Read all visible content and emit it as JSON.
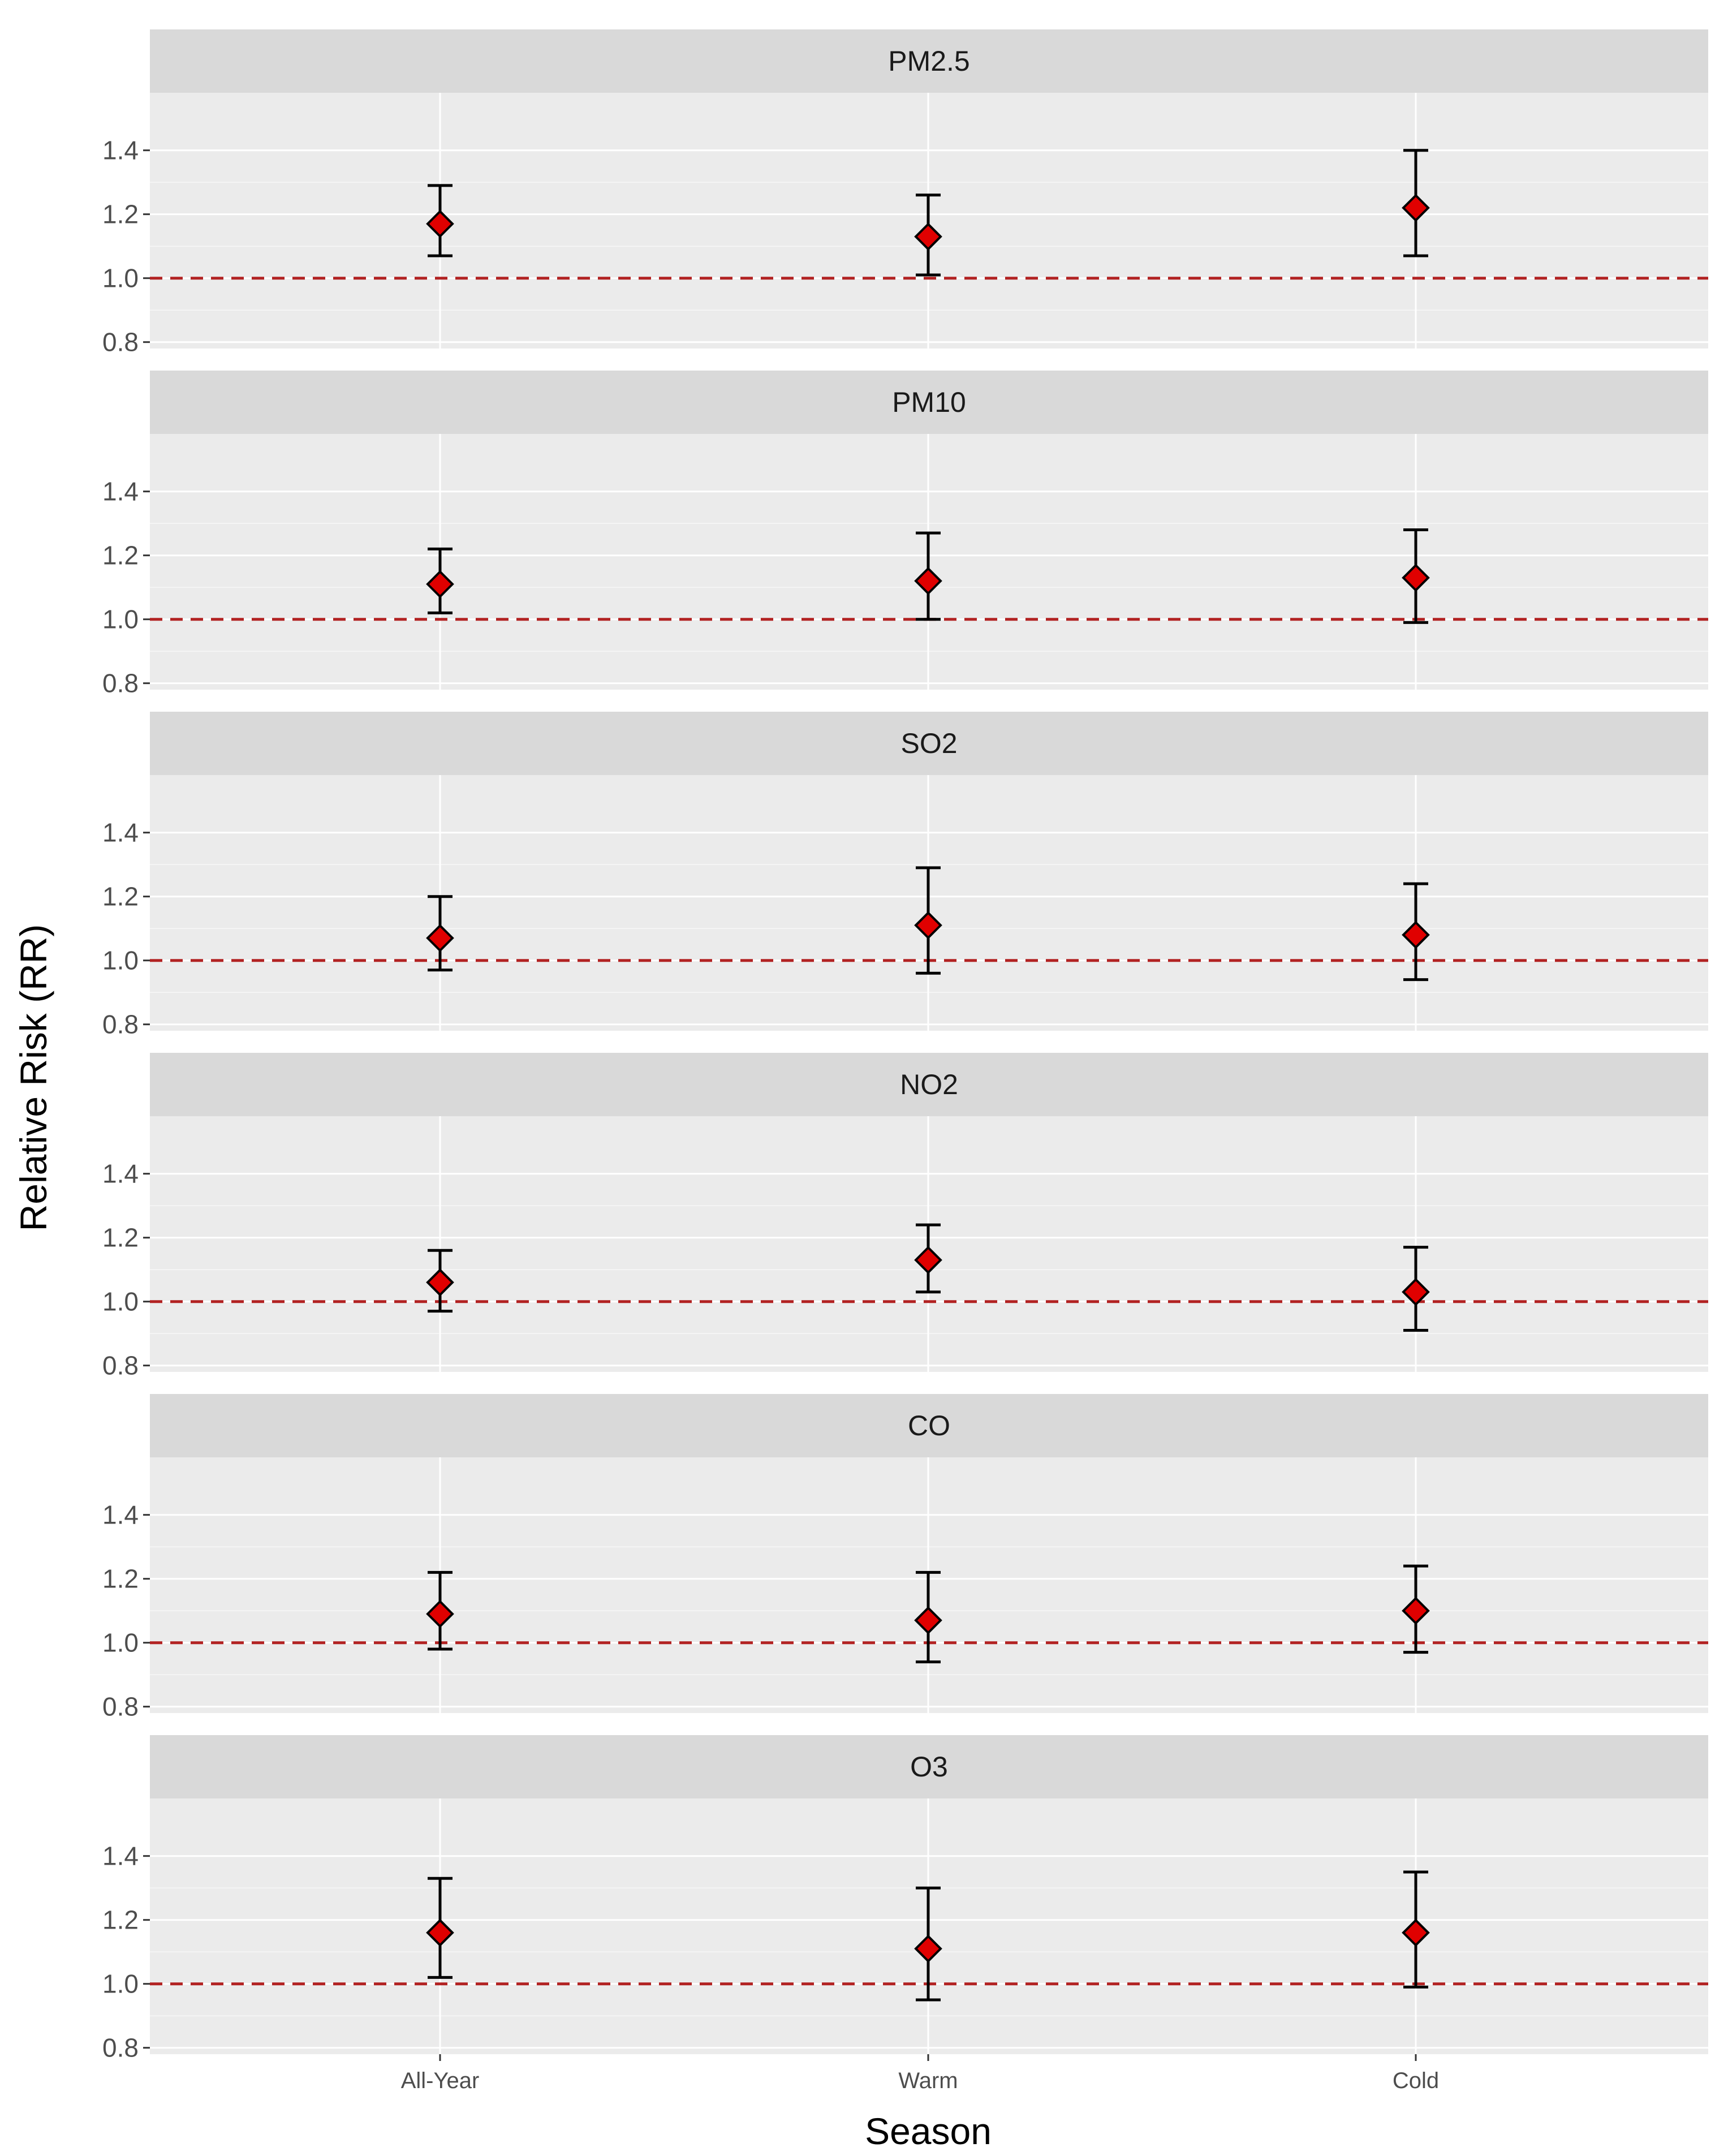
{
  "chart_data": {
    "type": "scatter",
    "title": "",
    "xlabel": "Season",
    "ylabel": "Relative Risk (RR)",
    "categories": [
      "All-Year",
      "Warm",
      "Cold"
    ],
    "ylim": [
      0.78,
      1.58
    ],
    "yticks": [
      0.8,
      1.0,
      1.2,
      1.4
    ],
    "ytick_labels": [
      "0.8",
      "1.0",
      "1.2",
      "1.4"
    ],
    "reference_line": 1.0,
    "grid": true,
    "colors": {
      "panel_bg": "#ebebeb",
      "strip_bg": "#d9d9d9",
      "grid": "#ffffff",
      "point_fill": "#e00000",
      "point_stroke": "#000000",
      "errorbar": "#000000",
      "reference_line": "#b22222"
    },
    "panels": [
      {
        "name": "PM2.5",
        "points": [
          {
            "category": "All-Year",
            "rr": 1.17,
            "lower": 1.07,
            "upper": 1.29
          },
          {
            "category": "Warm",
            "rr": 1.13,
            "lower": 1.01,
            "upper": 1.26
          },
          {
            "category": "Cold",
            "rr": 1.22,
            "lower": 1.07,
            "upper": 1.4
          }
        ]
      },
      {
        "name": "PM10",
        "points": [
          {
            "category": "All-Year",
            "rr": 1.11,
            "lower": 1.02,
            "upper": 1.22
          },
          {
            "category": "Warm",
            "rr": 1.12,
            "lower": 1.0,
            "upper": 1.27
          },
          {
            "category": "Cold",
            "rr": 1.13,
            "lower": 0.99,
            "upper": 1.28
          }
        ]
      },
      {
        "name": "SO2",
        "points": [
          {
            "category": "All-Year",
            "rr": 1.07,
            "lower": 0.97,
            "upper": 1.2
          },
          {
            "category": "Warm",
            "rr": 1.11,
            "lower": 0.96,
            "upper": 1.29
          },
          {
            "category": "Cold",
            "rr": 1.08,
            "lower": 0.94,
            "upper": 1.24
          }
        ]
      },
      {
        "name": "NO2",
        "points": [
          {
            "category": "All-Year",
            "rr": 1.06,
            "lower": 0.97,
            "upper": 1.16
          },
          {
            "category": "Warm",
            "rr": 1.13,
            "lower": 1.03,
            "upper": 1.24
          },
          {
            "category": "Cold",
            "rr": 1.03,
            "lower": 0.91,
            "upper": 1.17
          }
        ]
      },
      {
        "name": "CO",
        "points": [
          {
            "category": "All-Year",
            "rr": 1.09,
            "lower": 0.98,
            "upper": 1.22
          },
          {
            "category": "Warm",
            "rr": 1.07,
            "lower": 0.94,
            "upper": 1.22
          },
          {
            "category": "Cold",
            "rr": 1.1,
            "lower": 0.97,
            "upper": 1.24
          }
        ]
      },
      {
        "name": "O3",
        "points": [
          {
            "category": "All-Year",
            "rr": 1.16,
            "lower": 1.02,
            "upper": 1.33
          },
          {
            "category": "Warm",
            "rr": 1.11,
            "lower": 0.95,
            "upper": 1.3
          },
          {
            "category": "Cold",
            "rr": 1.16,
            "lower": 0.99,
            "upper": 1.35
          }
        ]
      }
    ]
  }
}
